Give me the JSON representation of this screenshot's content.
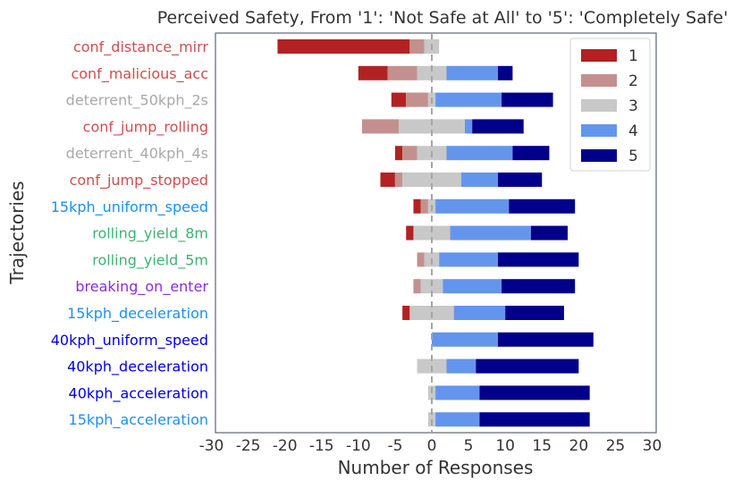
{
  "chart_data": {
    "type": "bar",
    "orientation": "horizontal-diverging-stacked",
    "title": "Perceived Safety, From '1': 'Not Safe at All' to '5': 'Completely Safe'",
    "xlabel": "Number of Responses",
    "ylabel": "Trajectories",
    "xlim": [
      -30,
      30
    ],
    "xticks": [
      -30,
      -25,
      -20,
      -15,
      -10,
      -5,
      0,
      5,
      10,
      15,
      20,
      25,
      30
    ],
    "center_line": 0,
    "legend": {
      "placement": "top-right",
      "entries": [
        "1",
        "2",
        "3",
        "4",
        "5"
      ]
    },
    "colors": {
      "1": "#b22222",
      "2": "#c4908e",
      "3": "#c8c8c8",
      "4": "#6495ed",
      "5": "#00008b",
      "axis": "#5b6577",
      "center_line": "#a6a6a6"
    },
    "categories": [
      {
        "label": "conf_distance_mirr",
        "color": "#cd4f4f"
      },
      {
        "label": "conf_malicious_acc",
        "color": "#cd4f4f"
      },
      {
        "label": "deterrent_50kph_2s",
        "color": "#a8a8a8"
      },
      {
        "label": "conf_jump_rolling",
        "color": "#cd4f4f"
      },
      {
        "label": "deterrent_40kph_4s",
        "color": "#a8a8a8"
      },
      {
        "label": "conf_jump_stopped",
        "color": "#cd4f4f"
      },
      {
        "label": "15kph_uniform_speed",
        "color": "#1e8ff0"
      },
      {
        "label": "rolling_yield_8m",
        "color": "#3cb371"
      },
      {
        "label": "rolling_yield_5m",
        "color": "#3cb371"
      },
      {
        "label": "breaking_on_enter",
        "color": "#8a2be2"
      },
      {
        "label": "15kph_deceleration",
        "color": "#1e8ff0"
      },
      {
        "label": "40kph_uniform_speed",
        "color": "#0000e0"
      },
      {
        "label": "40kph_deceleration",
        "color": "#0000e0"
      },
      {
        "label": "40kph_acceleration",
        "color": "#0000e0"
      },
      {
        "label": "15kph_acceleration",
        "color": "#1e8ff0"
      }
    ],
    "series": [
      {
        "name": "1",
        "values": [
          18,
          4,
          2,
          0,
          1,
          2,
          1,
          1,
          0,
          0,
          1,
          0,
          0,
          0,
          0
        ]
      },
      {
        "name": "2",
        "values": [
          2,
          4,
          3,
          5,
          2,
          1,
          1,
          0,
          1,
          1,
          0,
          0,
          0,
          0,
          0
        ]
      },
      {
        "name": "3",
        "values": [
          2,
          4,
          1,
          9,
          4,
          8,
          1,
          5,
          2,
          3,
          6,
          0,
          4,
          1,
          1
        ]
      },
      {
        "name": "4",
        "values": [
          0,
          7,
          9,
          1,
          9,
          5,
          10,
          11,
          8,
          8,
          7,
          9,
          4,
          6,
          6
        ]
      },
      {
        "name": "5",
        "values": [
          0,
          2,
          7,
          7,
          5,
          6,
          9,
          5,
          11,
          10,
          8,
          13,
          14,
          15,
          15
        ]
      }
    ]
  }
}
